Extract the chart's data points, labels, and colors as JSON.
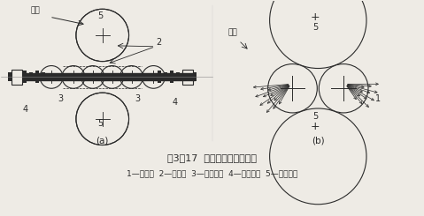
{
  "title": "图3－17  压缩空气喷射式轧车",
  "legend": "1—密封区  2—密封件  3—不锈钢辊  4—辅助辊筒  5—橡胶辊筒",
  "label_a": "(a)",
  "label_b": "(b)",
  "bg_color": "#eeebe5",
  "fg_color": "#2a2a2a",
  "fabric_label": "织物"
}
